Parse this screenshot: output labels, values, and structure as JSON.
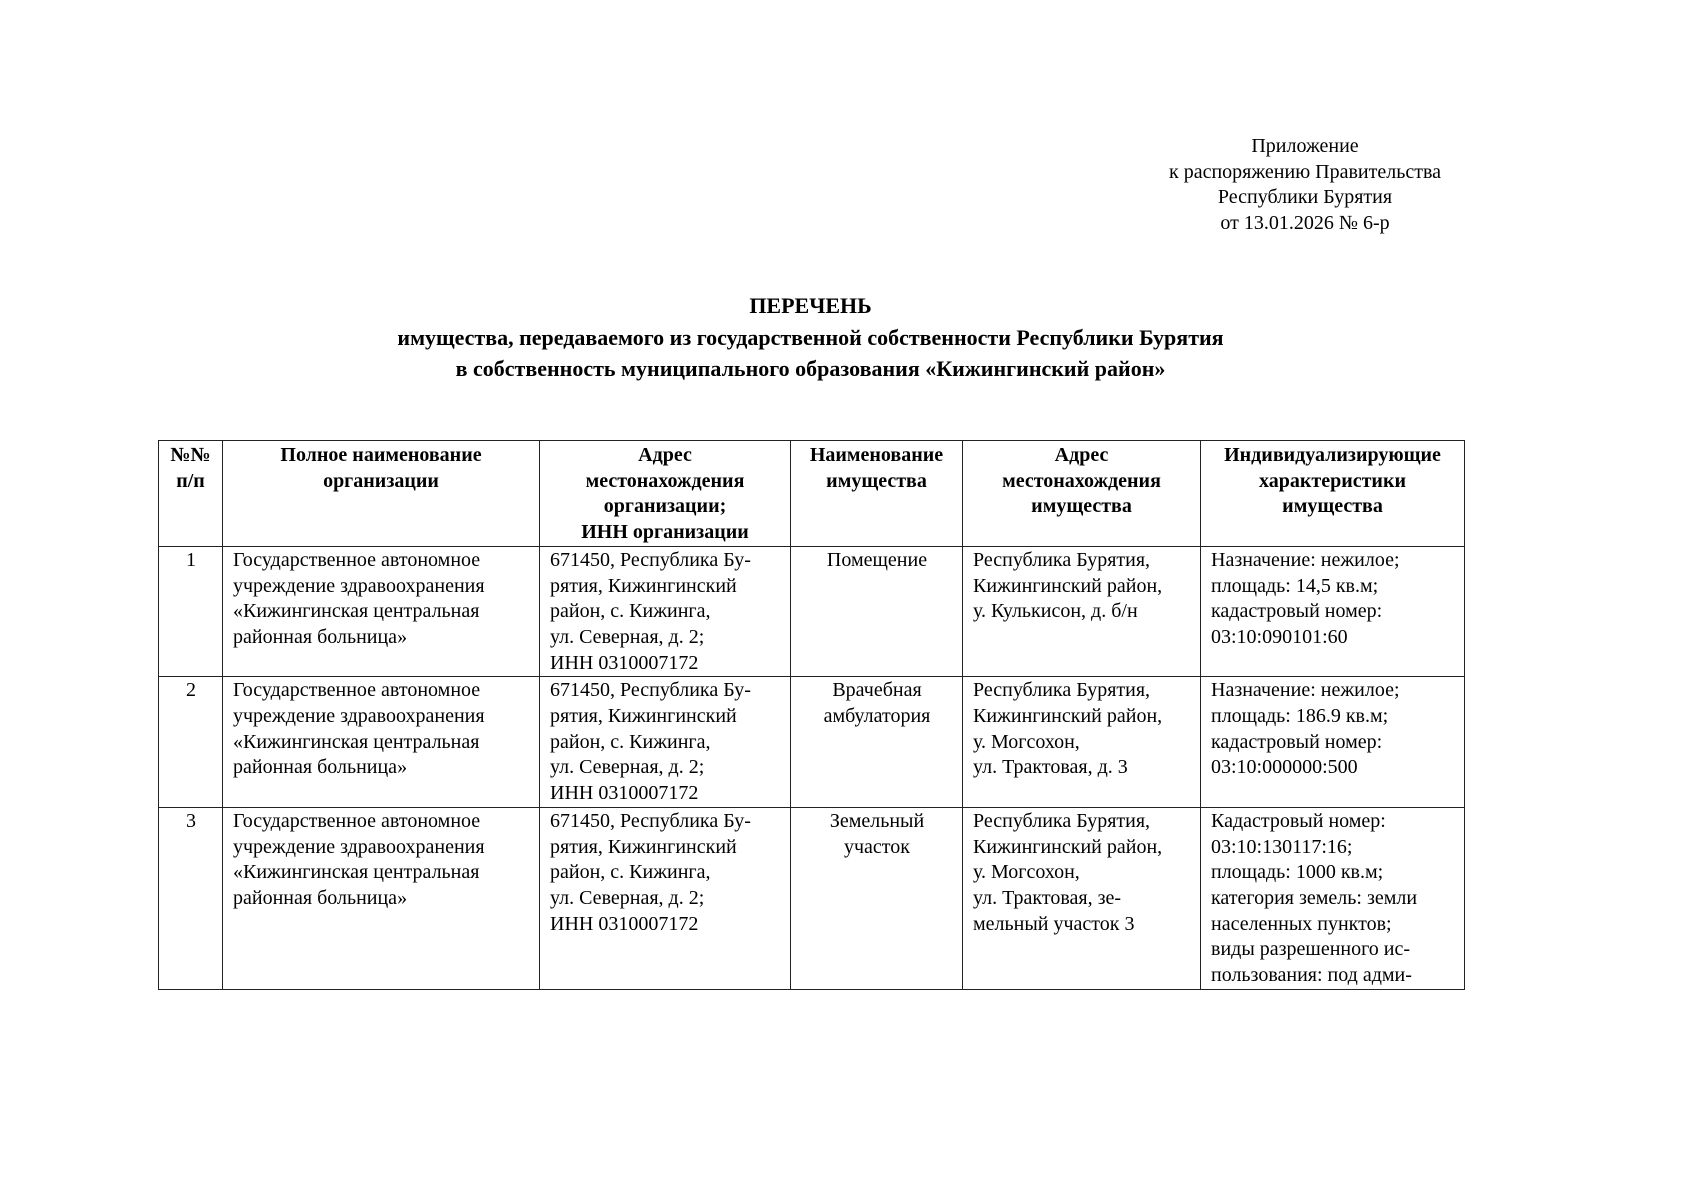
{
  "appendix": {
    "lines": [
      "Приложение",
      "к распоряжению Правительства",
      "Республики Бурятия",
      "от 13.01.2026 № 6-р"
    ]
  },
  "title": {
    "heading": "ПЕРЕЧЕНЬ",
    "line1": "имущества, передаваемого из государственной собственности Республики Бурятия",
    "line2": "в собственность муниципального образования «Кижингинский район»"
  },
  "table": {
    "headers": [
      "№№\nп/п",
      "Полное наименование\nорганизации",
      "Адрес\nместонахождения\nорганизации;\nИНН организации",
      "Наименование\nимущества",
      "Адрес\nместонахождения\nимущества",
      "Индивидуализирующие\nхарактеристики\nимущества"
    ],
    "rows": [
      {
        "num": "1",
        "org": "Государственное автономное\nучреждение здравоохранения\n«Кижингинская центральная\nрайонная больница»",
        "org_address": "671450, Республика Бу-\nрятия, Кижингинский\nрайон, с. Кижинга,\nул. Северная, д. 2;\nИНН 0310007172",
        "property": "Помещение",
        "property_address": "Республика Бурятия,\nКижингинский район,\nу. Кулькисон, д. б/н",
        "characteristics": "Назначение: нежилое;\nплощадь: 14,5 кв.м;\nкадастровый номер:\n03:10:090101:60"
      },
      {
        "num": "2",
        "org": "Государственное автономное\nучреждение здравоохранения\n«Кижингинская центральная\nрайонная больница»",
        "org_address": "671450, Республика Бу-\nрятия, Кижингинский\nрайон, с. Кижинга,\nул. Северная, д. 2;\nИНН 0310007172",
        "property": "Врачебная\nамбулатория",
        "property_address": "Республика Бурятия,\nКижингинский район,\nу. Могсохон,\nул. Трактовая, д. 3",
        "characteristics": "Назначение: нежилое;\nплощадь: 186.9 кв.м;\nкадастровый номер:\n03:10:000000:500"
      },
      {
        "num": "3",
        "org": "Государственное автономное\nучреждение здравоохранения\n«Кижингинская центральная\nрайонная больница»",
        "org_address": "671450, Республика Бу-\nрятия, Кижингинский\nрайон, с. Кижинга,\nул. Северная, д. 2;\nИНН 0310007172",
        "property": "Земельный\nучасток",
        "property_address": "Республика Бурятия,\nКижингинский район,\nу. Могсохон,\nул. Трактовая, зе-\nмельный участок 3",
        "characteristics": "Кадастровый номер:\n03:10:130117:16;\nплощадь: 1000 кв.м;\nкатегория земель: земли\nнаселенных пунктов;\nвиды разрешенного ис-\nпользования: под адми-"
      }
    ]
  }
}
